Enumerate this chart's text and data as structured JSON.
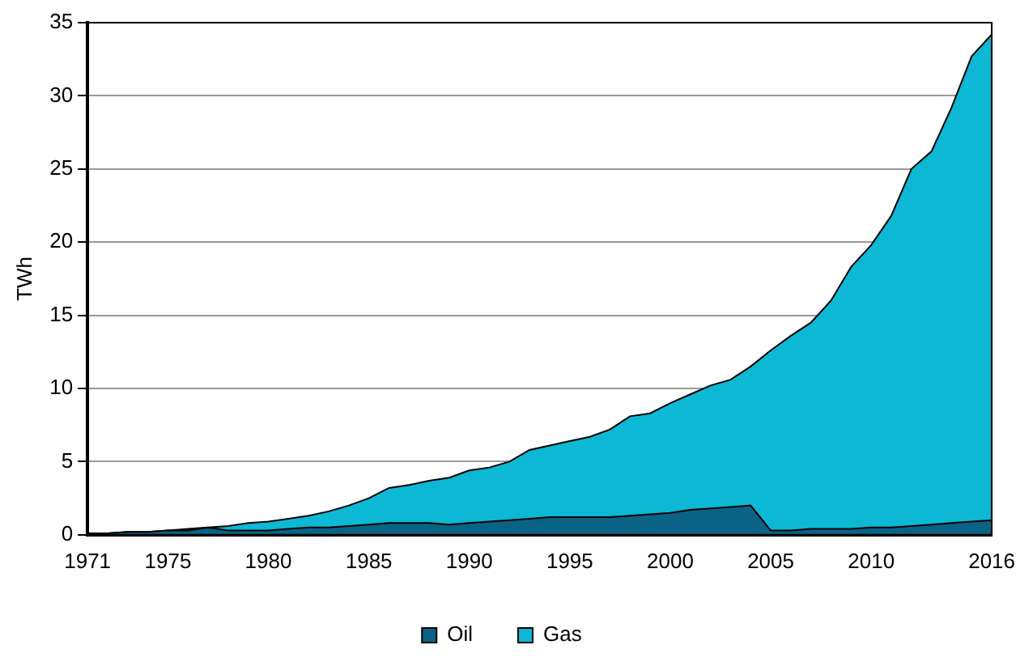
{
  "chart_data": {
    "type": "area",
    "ylabel": "TWh",
    "stacked": true,
    "grid": "y",
    "legend": "bottom",
    "categories": [
      "1971",
      null,
      null,
      null,
      "1975",
      null,
      null,
      null,
      null,
      "1980",
      null,
      null,
      null,
      null,
      "1985",
      null,
      null,
      null,
      null,
      "1990",
      null,
      null,
      null,
      null,
      "1995",
      null,
      null,
      null,
      null,
      "2000",
      null,
      null,
      null,
      null,
      "2005",
      null,
      null,
      null,
      null,
      "2010",
      null,
      null,
      null,
      null,
      null,
      "2016"
    ],
    "ylim": [
      0,
      35
    ],
    "yticks": [
      0,
      5,
      10,
      15,
      20,
      25,
      30,
      35
    ],
    "series": [
      {
        "name": "Oil",
        "color": "#0a6385",
        "values": [
          0.1,
          0.1,
          0.2,
          0.2,
          0.3,
          0.3,
          0.5,
          0.3,
          0.3,
          0.3,
          0.4,
          0.5,
          0.5,
          0.6,
          0.7,
          0.8,
          0.8,
          0.8,
          0.7,
          0.8,
          0.9,
          1.0,
          1.1,
          1.2,
          1.2,
          1.2,
          1.2,
          1.3,
          1.4,
          1.5,
          1.7,
          1.8,
          1.9,
          2.0,
          0.3,
          0.3,
          0.4,
          0.4,
          0.4,
          0.5,
          0.5,
          0.6,
          0.7,
          0.8,
          0.9,
          1.0
        ]
      },
      {
        "name": "Gas",
        "color": "#0cb8d4",
        "values": [
          0,
          0,
          0,
          0,
          0,
          0.1,
          0,
          0.3,
          0.5,
          0.6,
          0.7,
          0.8,
          1.1,
          1.4,
          1.8,
          2.4,
          2.6,
          2.9,
          3.2,
          3.6,
          3.7,
          4.0,
          4.7,
          4.9,
          5.2,
          5.5,
          6.0,
          6.8,
          6.9,
          7.5,
          7.9,
          8.4,
          8.7,
          9.5,
          12.3,
          13.3,
          14.1,
          15.6,
          17.9,
          19.3,
          21.3,
          24.4,
          25.5,
          28.4,
          31.8,
          33.2
        ]
      }
    ]
  }
}
